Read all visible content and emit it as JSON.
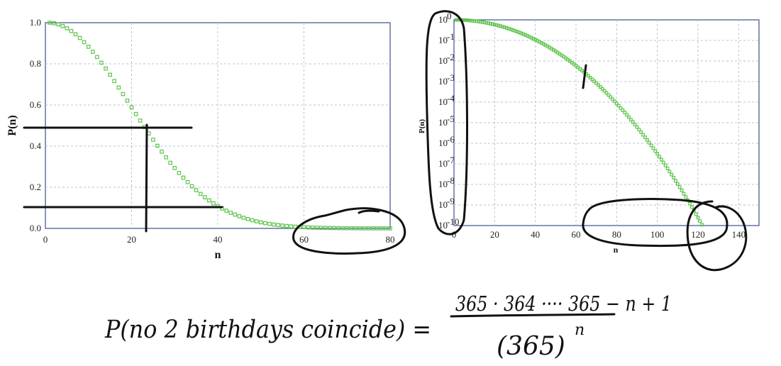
{
  "chart_data": [
    {
      "type": "scatter",
      "xlabel": "n",
      "ylabel": "P(n)",
      "xlim": [
        0,
        80
      ],
      "ylim": [
        0,
        1
      ],
      "xticks": [
        "0",
        "20",
        "40",
        "60",
        "80"
      ],
      "yticks": [
        "0.0",
        "0.2",
        "0.4",
        "0.6",
        "0.8",
        "1.0"
      ],
      "grid": true,
      "series": [
        {
          "x": [
            1,
            10,
            20,
            23,
            30,
            40,
            50,
            57,
            60,
            70,
            80
          ],
          "y": [
            1.0,
            0.883,
            0.589,
            0.493,
            0.294,
            0.109,
            0.03,
            0.01,
            0.006,
            0.0008,
            9e-05
          ]
        }
      ],
      "color": "#5cc44a"
    },
    {
      "type": "scatter",
      "xlabel": "n",
      "ylabel": "P(n)",
      "yscale": "log",
      "xlim": [
        0,
        150
      ],
      "ylim": [
        1e-10,
        1
      ],
      "xticks": [
        "0",
        "20",
        "40",
        "60",
        "80",
        "100",
        "120",
        "140"
      ],
      "yticks": [
        "10",
        "10",
        "10",
        "10",
        "10",
        "10",
        "10",
        "10",
        "10",
        "10",
        "10"
      ],
      "ytick_exponents": [
        "0",
        "-1",
        "-2",
        "-3",
        "-4",
        "-5",
        "-6",
        "-7",
        "-8",
        "-9",
        "-10"
      ],
      "grid": true,
      "series": [
        {
          "x": [
            1,
            10,
            20,
            30,
            40,
            50,
            60,
            70,
            80,
            90,
            100,
            110,
            120,
            124
          ],
          "y": [
            1.0,
            0.883,
            0.589,
            0.294,
            0.109,
            0.03,
            0.0059,
            0.00084,
            8.6e-05,
            6.2e-06,
            3.1e-07,
            1e-08,
            2.2e-10,
            1e-10
          ]
        }
      ],
      "color": "#5cc44a"
    }
  ],
  "annotation": {
    "left": "P(no 2 birthdays coincide) =",
    "numerator": "365 · 364 ···· 365 − n + 1",
    "denominator_base": "(365)",
    "denominator_exp": "n"
  }
}
